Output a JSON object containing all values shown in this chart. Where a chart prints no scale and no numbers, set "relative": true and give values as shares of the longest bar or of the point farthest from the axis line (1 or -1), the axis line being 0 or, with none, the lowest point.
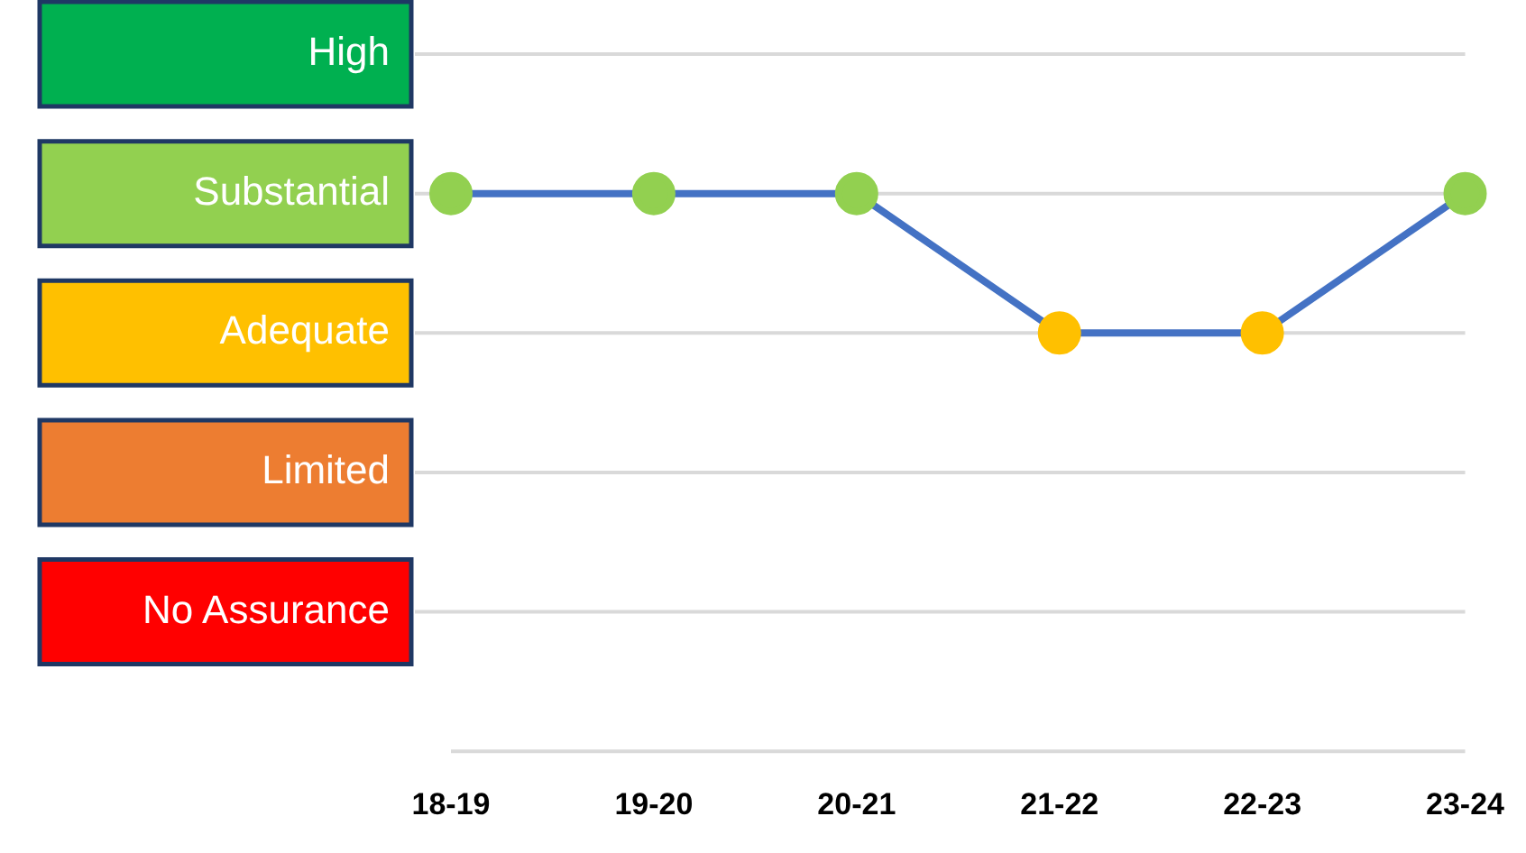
{
  "chart_data": {
    "type": "line",
    "relative": true,
    "categories": [
      "18-19",
      "19-20",
      "20-21",
      "21-22",
      "22-23",
      "23-24"
    ],
    "series": [
      {
        "color": "#4472c4",
        "colors": [
          "#92d050",
          "#92d050",
          "#92d050",
          "#ffc000",
          "#ffc000",
          "#92d050"
        ],
        "values": [
          1,
          1,
          1,
          0.75,
          0.75,
          1
        ]
      }
    ],
    "ref_lines": [
      {
        "axis": "y",
        "value": 1.25,
        "label": "High",
        "color": "#d9d9d9"
      },
      {
        "axis": "y",
        "value": 1,
        "label": "Substantial",
        "color": "#d9d9d9"
      },
      {
        "axis": "y",
        "value": 0.75,
        "label": "Adequate",
        "color": "#d9d9d9"
      },
      {
        "axis": "y",
        "value": 0.5,
        "label": "Limited",
        "color": "#d9d9d9"
      },
      {
        "axis": "y",
        "value": 0.25,
        "label": "No Assurance",
        "color": "#d9d9d9"
      },
      {
        "axis": "y",
        "value": 0,
        "color": "#d9d9d9"
      }
    ],
    "legend": false,
    "marker": "circle",
    "line_style": "solid"
  }
}
